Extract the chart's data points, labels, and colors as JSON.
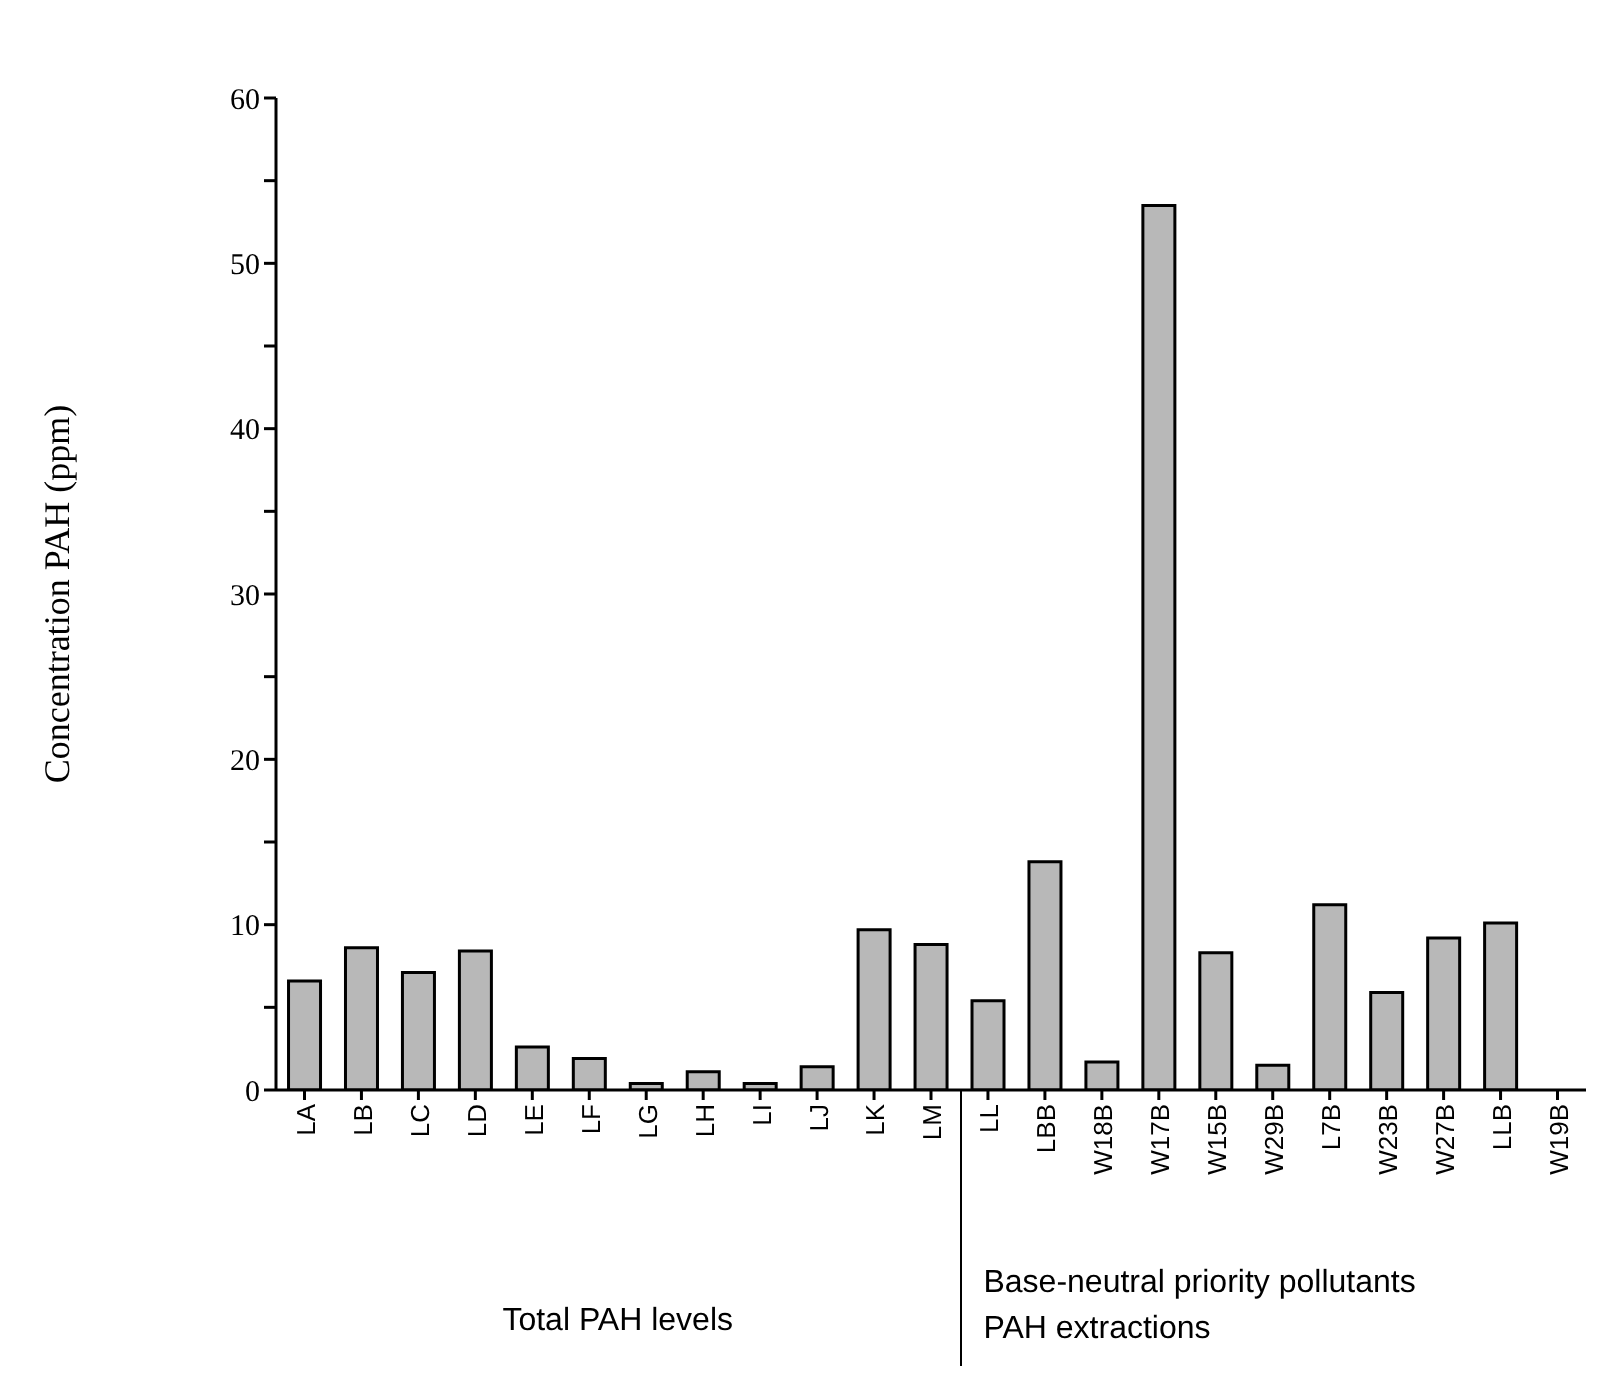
{
  "chart_data": {
    "type": "bar",
    "ylabel": "Concentration PAH (ppm)",
    "categories": [
      "LA",
      "LB",
      "LC",
      "LD",
      "LE",
      "LF",
      "LG",
      "LH",
      "LI",
      "LJ",
      "LK",
      "LM",
      "LL",
      "LBB",
      "W18B",
      "W17B",
      "W15B",
      "W29B",
      "L7B",
      "W23B",
      "W27B",
      "LLB",
      "W19B"
    ],
    "values": [
      6.6,
      8.6,
      7.1,
      8.4,
      2.6,
      1.9,
      0.4,
      1.1,
      0.4,
      1.4,
      9.7,
      8.8,
      5.4,
      13.8,
      1.7,
      53.5,
      8.3,
      1.5,
      11.2,
      5.9,
      9.2,
      10.1,
      0
    ],
    "color": "#b8b8b8",
    "ylim": [
      0,
      60
    ],
    "yticks": [
      0,
      {
        "value": 5,
        "label": null
      },
      10,
      {
        "value": 15,
        "label": null
      },
      20,
      {
        "value": 25,
        "label": null
      },
      30,
      {
        "value": 35,
        "label": null
      },
      40,
      {
        "value": 45,
        "label": null
      },
      50,
      {
        "value": 55,
        "label": null
      },
      60
    ],
    "grid": false,
    "annotations": [
      "Total PAH levels",
      "Base-neutral priority pollutants\nPAH extractions"
    ]
  }
}
